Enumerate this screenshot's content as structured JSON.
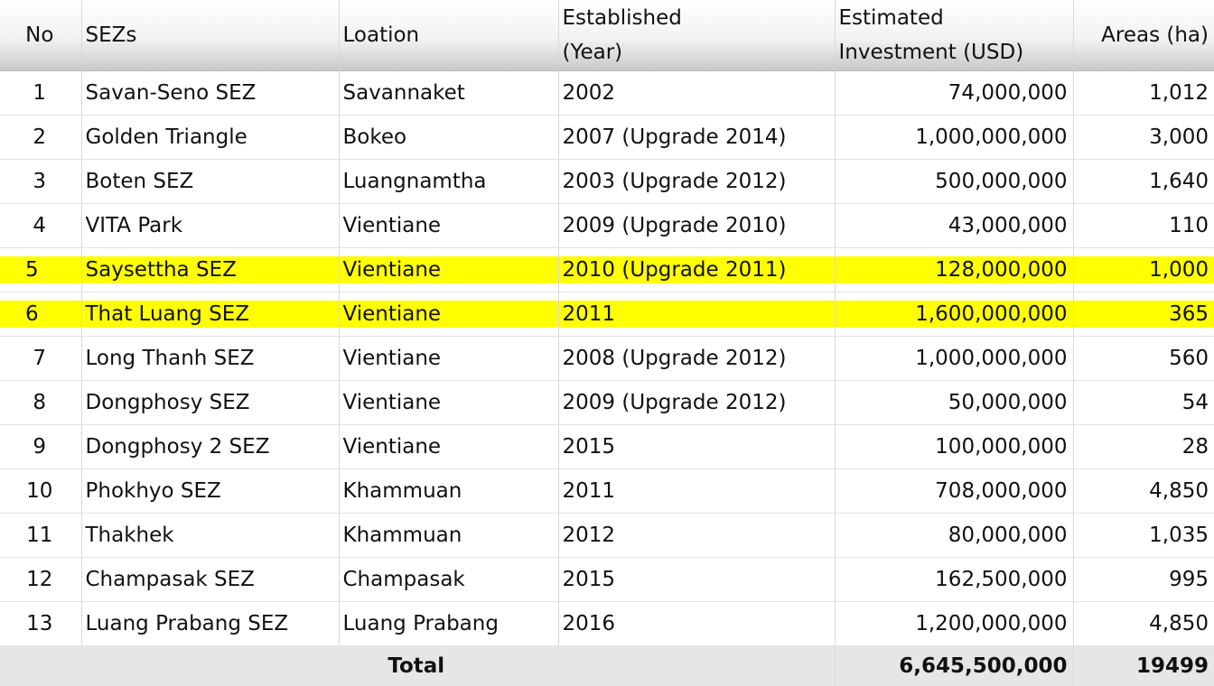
{
  "headers": {
    "no": "No",
    "sezs": "SEZs",
    "location": "Loation",
    "established_line1": "Established",
    "established_line2": "(Year)",
    "investment_line1": "Estimated",
    "investment_line2": "Investment (USD)",
    "areas": "Areas (ha)"
  },
  "rows": [
    {
      "no": "1",
      "sez": "Savan-Seno SEZ",
      "location": "Savannaket",
      "established": "2002",
      "investment": "74,000,000",
      "area": "1,012",
      "highlighted": false
    },
    {
      "no": "2",
      "sez": "Golden Triangle",
      "location": "Bokeo",
      "established": "2007 (Upgrade 2014)",
      "investment": "1,000,000,000",
      "area": "3,000",
      "highlighted": false
    },
    {
      "no": "3",
      "sez": "Boten SEZ",
      "location": "Luangnamtha",
      "established": "2003 (Upgrade 2012)",
      "investment": "500,000,000",
      "area": "1,640",
      "highlighted": false
    },
    {
      "no": "4",
      "sez": "VITA Park",
      "location": "Vientiane",
      "established": "2009 (Upgrade 2010)",
      "investment": "43,000,000",
      "area": "110",
      "highlighted": false
    },
    {
      "no": "5",
      "sez": "Saysettha SEZ",
      "location": "Vientiane",
      "established": "2010 (Upgrade 2011)",
      "investment": "128,000,000",
      "area": "1,000",
      "highlighted": true
    },
    {
      "no": "6",
      "sez": "That Luang SEZ",
      "location": "Vientiane",
      "established": "2011",
      "investment": "1,600,000,000",
      "area": "365",
      "highlighted": true
    },
    {
      "no": "7",
      "sez": "Long Thanh SEZ",
      "location": "Vientiane",
      "established": "2008 (Upgrade 2012)",
      "investment": "1,000,000,000",
      "area": "560",
      "highlighted": false
    },
    {
      "no": "8",
      "sez": "Dongphosy SEZ",
      "location": "Vientiane",
      "established": "2009 (Upgrade 2012)",
      "investment": "50,000,000",
      "area": "54",
      "highlighted": false
    },
    {
      "no": "9",
      "sez": "Dongphosy 2 SEZ",
      "location": "Vientiane",
      "established": "2015",
      "investment": "100,000,000",
      "area": "28",
      "highlighted": false
    },
    {
      "no": "10",
      "sez": "Phokhyo SEZ",
      "location": "Khammuan",
      "established": "2011",
      "investment": "708,000,000",
      "area": "4,850",
      "highlighted": false
    },
    {
      "no": "11",
      "sez": "Thakhek",
      "location": "Khammuan",
      "established": "2012",
      "investment": "80,000,000",
      "area": "1,035",
      "highlighted": false
    },
    {
      "no": "12",
      "sez": "Champasak SEZ",
      "location": "Champasak",
      "established": "2015",
      "investment": "162,500,000",
      "area": "995",
      "highlighted": false
    },
    {
      "no": "13",
      "sez": "Luang Prabang SEZ",
      "location": "Luang Prabang",
      "established": "2016",
      "investment": "1,200,000,000",
      "area": "4,850",
      "highlighted": false
    }
  ],
  "total": {
    "label": "Total",
    "investment": "6,645,500,000",
    "area": "19499"
  },
  "colors": {
    "highlight": "#ffff00",
    "total_background": "#e6e6e6"
  }
}
